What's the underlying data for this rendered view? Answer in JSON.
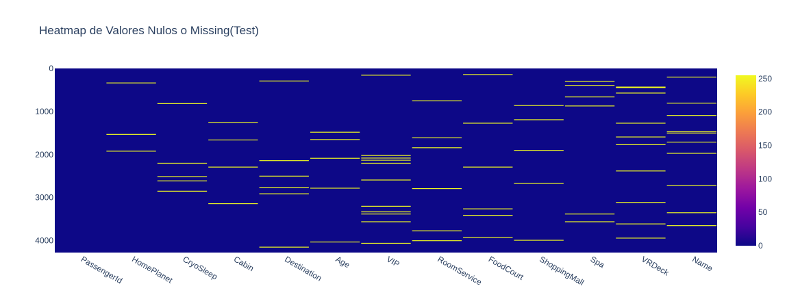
{
  "chart_data": {
    "type": "heatmap",
    "title": "Heatmap de Valores Nulos o Missing(Test)",
    "xlabel": "",
    "ylabel": "",
    "categories": [
      "PassengerId",
      "HomePlanet",
      "CryoSleep",
      "Cabin",
      "Destination",
      "Age",
      "VIP",
      "RoomService",
      "FoodCourt",
      "ShoppingMall",
      "Spa",
      "VRDeck",
      "Name"
    ],
    "y_range": [
      0,
      4277
    ],
    "y_ticks": [
      0,
      1000,
      2000,
      3000,
      4000
    ],
    "y_reversed": true,
    "colorscale": {
      "min": 0,
      "max": 255,
      "ticks": [
        0,
        50,
        100,
        150,
        200,
        250
      ],
      "stops": [
        "#0d0887",
        "#46039f",
        "#7201a8",
        "#9c179e",
        "#bd3786",
        "#d8576b",
        "#ed7953",
        "#fb9f3a",
        "#fdca26",
        "#f0f921"
      ]
    },
    "background_value": 0,
    "missing_value": 255,
    "missing_rows": {
      "PassengerId": [],
      "HomePlanet": [
        335,
        1530,
        1920
      ],
      "CryoSleep": [
        815,
        2200,
        2510,
        2610,
        2850
      ],
      "Cabin": [
        1250,
        1660,
        2290,
        3140
      ],
      "Destination": [
        290,
        2140,
        2500,
        2760,
        2910,
        4150
      ],
      "Age": [
        1480,
        1650,
        2085,
        2780,
        4030
      ],
      "VIP": [
        155,
        2020,
        2080,
        2130,
        2200,
        2590,
        3200,
        3330,
        3380,
        3560,
        4060
      ],
      "RoomService": [
        750,
        1610,
        1840,
        2790,
        3770,
        4000
      ],
      "FoodCourt": [
        140,
        1270,
        2290,
        3260,
        3410,
        3920
      ],
      "ShoppingMall": [
        860,
        1190,
        1900,
        2670,
        3990
      ],
      "Spa": [
        300,
        390,
        660,
        870,
        3380,
        3560
      ],
      "VRDeck": [
        430,
        445,
        570,
        1270,
        1590,
        1770,
        2380,
        3110,
        3610,
        3940
      ],
      "Name": [
        200,
        805,
        1090,
        1470,
        1500,
        1710,
        1970,
        2720,
        3350,
        3650
      ]
    }
  }
}
